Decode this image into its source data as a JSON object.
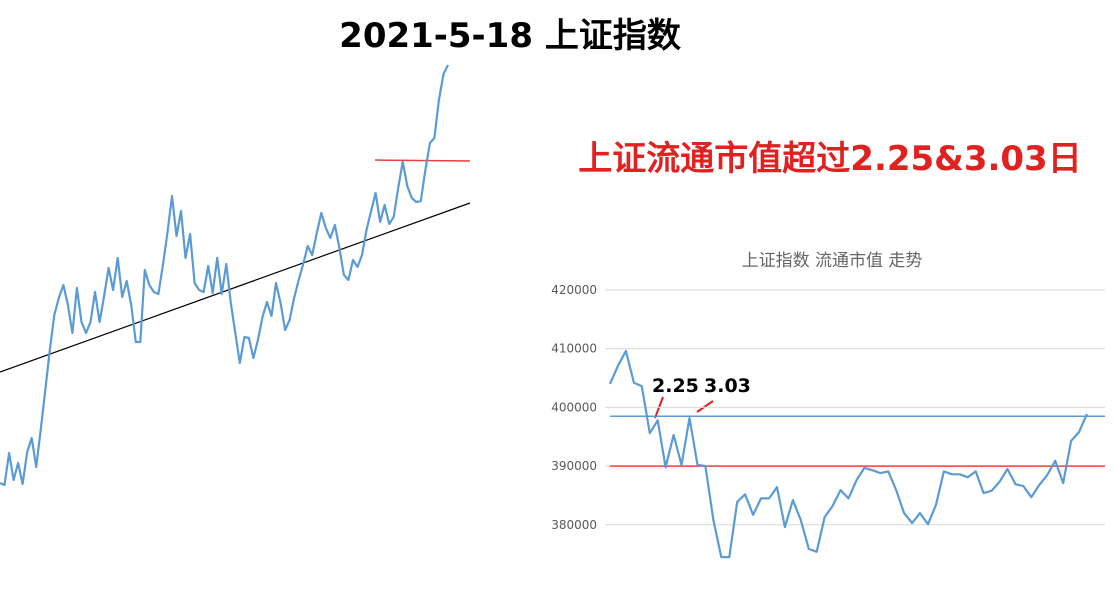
{
  "title": "2021-5-18 上证指数",
  "headline": "上证流通市值超过2.25&3.03日",
  "chart_data": [
    {
      "type": "line",
      "categories": [
        null,
        null,
        null,
        null,
        null,
        null,
        null,
        null,
        null,
        null,
        null,
        null,
        null,
        null,
        null,
        null,
        null,
        null,
        null,
        null,
        null,
        null,
        null,
        null,
        null,
        null,
        null,
        null,
        null,
        null,
        null,
        null,
        null,
        null,
        null,
        null,
        null,
        null,
        null,
        null,
        null,
        null,
        null,
        null,
        null,
        null,
        null,
        null,
        null,
        null,
        null,
        null,
        null,
        null,
        null,
        null,
        null,
        null,
        null,
        null,
        null,
        null,
        null,
        null,
        null,
        null,
        null,
        null,
        null,
        null,
        null,
        null,
        null,
        null,
        null,
        null,
        null,
        null,
        null,
        null,
        null,
        null,
        null,
        null,
        null,
        null,
        null,
        null,
        null,
        null,
        null,
        null,
        null,
        null,
        null,
        null,
        null,
        null,
        null,
        null
      ],
      "series": [
        {
          "color": "#5b9bd5",
          "values": [
            17,
            15,
            47,
            20,
            37,
            16,
            48,
            62,
            33,
            70,
            110,
            150,
            185,
            202,
            215,
            195,
            167,
            212,
            178,
            167,
            178,
            208,
            178,
            204,
            232,
            210,
            242,
            203,
            219,
            195,
            158,
            158,
            230,
            215,
            208,
            206,
            235,
            267,
            304,
            264,
            289,
            242,
            266,
            217,
            210,
            208,
            234,
            207,
            242,
            206,
            236,
            197,
            167,
            137,
            163,
            162,
            142,
            160,
            183,
            198,
            184,
            217,
            197,
            170,
            180,
            202,
            220,
            236,
            254,
            245,
            267,
            287,
            272,
            262,
            275,
            252,
            225,
            220,
            240,
            233,
            245,
            270,
            289,
            307,
            278,
            295,
            276,
            283,
            312,
            338,
            314,
            302,
            298,
            299,
            330,
            357,
            362,
            400,
            426,
            435
          ]
        }
      ],
      "ylim": [
        0,
        500
      ]
    },
    {
      "type": "line",
      "title": "上证指数 流通市值 走势",
      "categories": [
        null,
        null,
        null,
        null,
        null,
        null,
        null,
        null,
        null,
        null,
        null,
        null,
        null,
        null,
        null,
        null,
        null,
        null,
        null,
        null,
        null,
        null,
        null,
        null,
        null,
        null,
        null,
        null,
        null,
        null,
        null,
        null,
        null,
        null,
        null,
        null,
        null,
        null,
        null,
        null,
        null,
        null,
        null,
        null,
        null,
        null,
        null,
        null,
        null,
        null,
        null,
        null,
        null,
        null,
        null,
        null,
        null,
        null,
        null,
        null,
        null
      ],
      "series": [
        {
          "color": "#5b9bd5",
          "values": [
            404000,
            407100,
            409600,
            404200,
            403600,
            395600,
            397800,
            389800,
            395300,
            390200,
            398200,
            390200,
            390000,
            380800,
            374500,
            374500,
            383900,
            385200,
            381700,
            384500,
            384500,
            386400,
            379600,
            384200,
            380800,
            375900,
            375400,
            381300,
            383200,
            385900,
            384500,
            387600,
            389700,
            389300,
            388800,
            389100,
            385900,
            382000,
            380300,
            382000,
            380100,
            383400,
            389100,
            388600,
            388600,
            388100,
            389100,
            385400,
            385800,
            387300,
            389500,
            386900,
            386600,
            384700,
            386800,
            388500,
            390900,
            387100,
            394300,
            395800,
            398900
          ]
        }
      ],
      "reference_lines": [
        {
          "value": 398500,
          "color": "#5b9bd5"
        },
        {
          "value": 390000,
          "color": "#e8403c"
        }
      ],
      "annotations": [
        "2.25",
        "3.03"
      ],
      "ylim": [
        370000,
        420000
      ],
      "yticks": [
        380000,
        390000,
        400000,
        410000,
        420000
      ],
      "grid": true
    }
  ]
}
